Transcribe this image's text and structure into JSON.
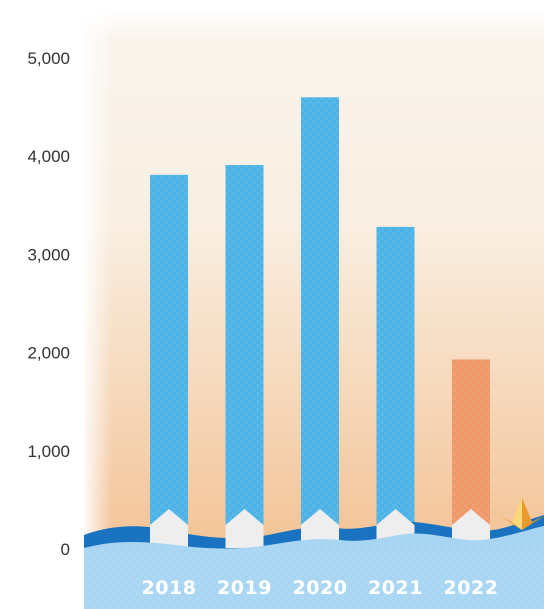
{
  "chart_data": {
    "type": "bar",
    "title": "",
    "xlabel": "",
    "ylabel": "",
    "categories": [
      "2018",
      "2019",
      "2020",
      "2021",
      "2022"
    ],
    "values": [
      3810,
      3910,
      4600,
      3280,
      1930
    ],
    "ylim": [
      0,
      5000
    ],
    "yticks": [
      0,
      1000,
      2000,
      3000,
      4000,
      5000
    ],
    "ytick_labels": [
      "0",
      "1,000",
      "2,000",
      "3,000",
      "4,000",
      "5,000"
    ],
    "grid": false,
    "bar_colors": [
      "#4db3e6",
      "#4db3e6",
      "#4db3e6",
      "#4db3e6",
      "#f0986a"
    ],
    "background_top_color": "#faf5ee",
    "background_bottom_color": "#f2bb88",
    "wave_color": "#a8d6f2",
    "wave_crest_color": "#1a73c0",
    "marker_color": "#eeeeee",
    "decoration_icon": "paper-boat-icon"
  }
}
